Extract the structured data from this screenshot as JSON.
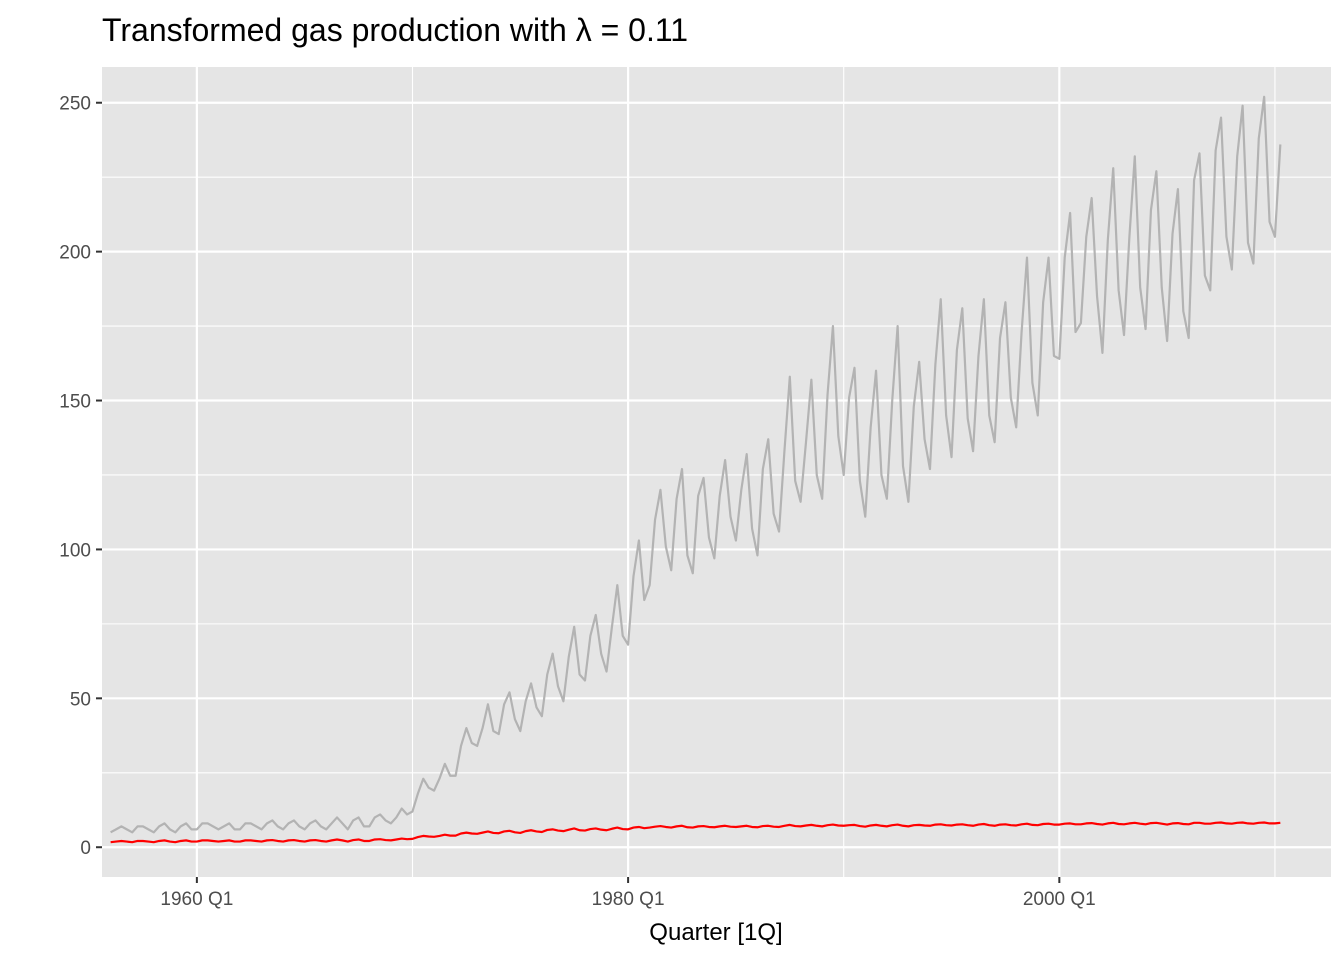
{
  "chart_data": {
    "type": "line",
    "title": "Transformed gas production with λ = 0.11",
    "xlabel": "Quarter [1Q]",
    "ylabel": "",
    "x_start": "1956 Q1",
    "x_end": "2010 Q2",
    "x_ticks": [
      "1960 Q1",
      "1980 Q1",
      "2000 Q1"
    ],
    "y_ticks": [
      "0",
      "50",
      "100",
      "150",
      "200",
      "250"
    ],
    "ylim": [
      -10,
      262
    ],
    "grid": true,
    "legend": "none",
    "colors": {
      "panel": "#e5e5e5",
      "grid": "#ffffff",
      "original": "#b3b3b3",
      "transformed": "#ff0000"
    },
    "series": [
      {
        "color": "#b3b3b3",
        "values": [
          5,
          6,
          7,
          6,
          5,
          7,
          7,
          6,
          5,
          7,
          8,
          6,
          5,
          7,
          8,
          6,
          6,
          8,
          8,
          7,
          6,
          7,
          8,
          6,
          6,
          8,
          8,
          7,
          6,
          8,
          9,
          7,
          6,
          8,
          9,
          7,
          6,
          8,
          9,
          7,
          6,
          8,
          10,
          8,
          6,
          9,
          10,
          7,
          7,
          10,
          11,
          9,
          8,
          10,
          13,
          11,
          12,
          18,
          23,
          20,
          19,
          23,
          28,
          24,
          24,
          34,
          40,
          35,
          34,
          40,
          48,
          39,
          38,
          48,
          52,
          43,
          39,
          49,
          55,
          47,
          44,
          58,
          65,
          54,
          49,
          64,
          74,
          58,
          56,
          71,
          78,
          65,
          59,
          74,
          88,
          71,
          68,
          91,
          103,
          83,
          88,
          110,
          120,
          101,
          93,
          117,
          127,
          98,
          92,
          118,
          124,
          104,
          97,
          118,
          130,
          111,
          103,
          120,
          132,
          107,
          98,
          127,
          137,
          112,
          106,
          133,
          158,
          123,
          116,
          136,
          157,
          125,
          117,
          152,
          175,
          138,
          125,
          151,
          161,
          123,
          111,
          141,
          160,
          125,
          117,
          150,
          175,
          128,
          116,
          148,
          163,
          137,
          127,
          162,
          184,
          145,
          131,
          167,
          181,
          144,
          133,
          165,
          184,
          145,
          136,
          171,
          183,
          151,
          141,
          173,
          198,
          156,
          145,
          183,
          198,
          165,
          164,
          198,
          213,
          173,
          176,
          205,
          218,
          185,
          166,
          204,
          228,
          187,
          172,
          205,
          232,
          188,
          174,
          214,
          227,
          188,
          170,
          206,
          221,
          180,
          171,
          224,
          233,
          192,
          187,
          234,
          245,
          205,
          194,
          232,
          249,
          203,
          196,
          238,
          252,
          210,
          205,
          236
        ]
      },
      {
        "color": "#ff0000",
        "values": [
          1.7,
          1.9,
          2.1,
          1.9,
          1.7,
          2.1,
          2.1,
          1.9,
          1.7,
          2.1,
          2.3,
          1.9,
          1.7,
          2.1,
          2.3,
          1.9,
          1.9,
          2.3,
          2.3,
          2.1,
          1.9,
          2.1,
          2.3,
          1.9,
          1.9,
          2.3,
          2.3,
          2.1,
          1.9,
          2.3,
          2.4,
          2.1,
          1.9,
          2.3,
          2.4,
          2.1,
          1.9,
          2.3,
          2.4,
          2.1,
          1.9,
          2.3,
          2.6,
          2.3,
          1.9,
          2.4,
          2.6,
          2.1,
          2.1,
          2.6,
          2.7,
          2.4,
          2.3,
          2.6,
          2.9,
          2.7,
          2.8,
          3.4,
          3.8,
          3.6,
          3.5,
          3.8,
          4.2,
          3.9,
          3.9,
          4.6,
          4.9,
          4.6,
          4.5,
          4.9,
          5.3,
          4.8,
          4.7,
          5.3,
          5.5,
          5.0,
          4.8,
          5.4,
          5.7,
          5.3,
          5.1,
          5.8,
          6.0,
          5.6,
          5.4,
          5.9,
          6.3,
          5.7,
          5.6,
          6.1,
          6.3,
          5.9,
          5.7,
          6.2,
          6.6,
          6.1,
          6.0,
          6.6,
          6.8,
          6.4,
          6.6,
          6.9,
          7.1,
          6.8,
          6.6,
          7.0,
          7.2,
          6.7,
          6.6,
          7.0,
          7.1,
          6.8,
          6.7,
          7.0,
          7.2,
          6.9,
          6.8,
          7.0,
          7.2,
          6.8,
          6.7,
          7.1,
          7.2,
          6.9,
          6.8,
          7.2,
          7.5,
          7.1,
          7.0,
          7.3,
          7.5,
          7.2,
          7.0,
          7.4,
          7.6,
          7.3,
          7.2,
          7.4,
          7.5,
          7.1,
          6.9,
          7.3,
          7.5,
          7.2,
          7.0,
          7.4,
          7.6,
          7.2,
          7.0,
          7.4,
          7.5,
          7.3,
          7.2,
          7.6,
          7.7,
          7.4,
          7.3,
          7.6,
          7.7,
          7.4,
          7.2,
          7.6,
          7.8,
          7.4,
          7.2,
          7.6,
          7.7,
          7.4,
          7.3,
          7.7,
          7.9,
          7.5,
          7.4,
          7.8,
          7.9,
          7.6,
          7.6,
          7.9,
          8.0,
          7.7,
          7.7,
          8.0,
          8.1,
          7.8,
          7.6,
          8.0,
          8.2,
          7.8,
          7.7,
          8.0,
          8.2,
          7.9,
          7.7,
          8.1,
          8.2,
          7.9,
          7.6,
          8.0,
          8.1,
          7.8,
          7.7,
          8.2,
          8.2,
          7.9,
          7.9,
          8.2,
          8.3,
          8.0,
          7.9,
          8.2,
          8.3,
          8.0,
          7.9,
          8.2,
          8.3,
          8.0,
          8.0,
          8.2
        ]
      }
    ]
  }
}
